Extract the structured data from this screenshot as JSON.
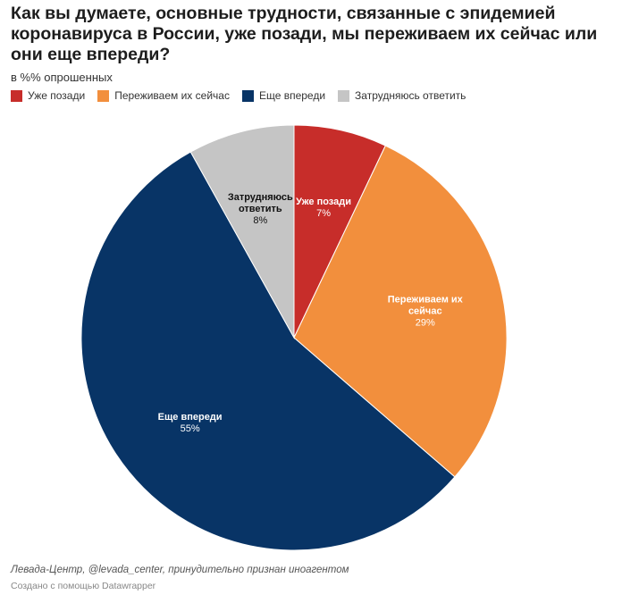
{
  "chart_data": {
    "type": "pie",
    "title": "Как вы думаете, основные трудности, связанные с эпидемией коронавируса в России, уже позади, мы переживаем их сейчас или они еще впереди?",
    "subtitle": "в %% опрошенных",
    "legend_placement": "top-left",
    "slices": [
      {
        "label": "Уже позади",
        "chart_label": [
          "Уже позади"
        ],
        "value": 7,
        "display": "7%",
        "color": "#c72d2a",
        "text": "#ffffff"
      },
      {
        "label": "Переживаем их сейчас",
        "chart_label": [
          "Переживаем их",
          "сейчас"
        ],
        "value": 29,
        "display": "29%",
        "color": "#f28f3d",
        "text": "#ffffff"
      },
      {
        "label": "Еще впереди",
        "chart_label": [
          "Еще впереди"
        ],
        "value": 55,
        "display": "55%",
        "color": "#083466",
        "text": "#ffffff"
      },
      {
        "label": "Затрудняюсь ответить",
        "chart_label": [
          "Затрудняюсь",
          "ответить"
        ],
        "value": 8,
        "display": "8%",
        "color": "#c5c5c5",
        "text": "#111111"
      }
    ]
  },
  "footer": {
    "source": "Левада-Центр, @levada_center, принудительно признан иноагентом",
    "credit": "Создано с помощью Datawrapper"
  }
}
